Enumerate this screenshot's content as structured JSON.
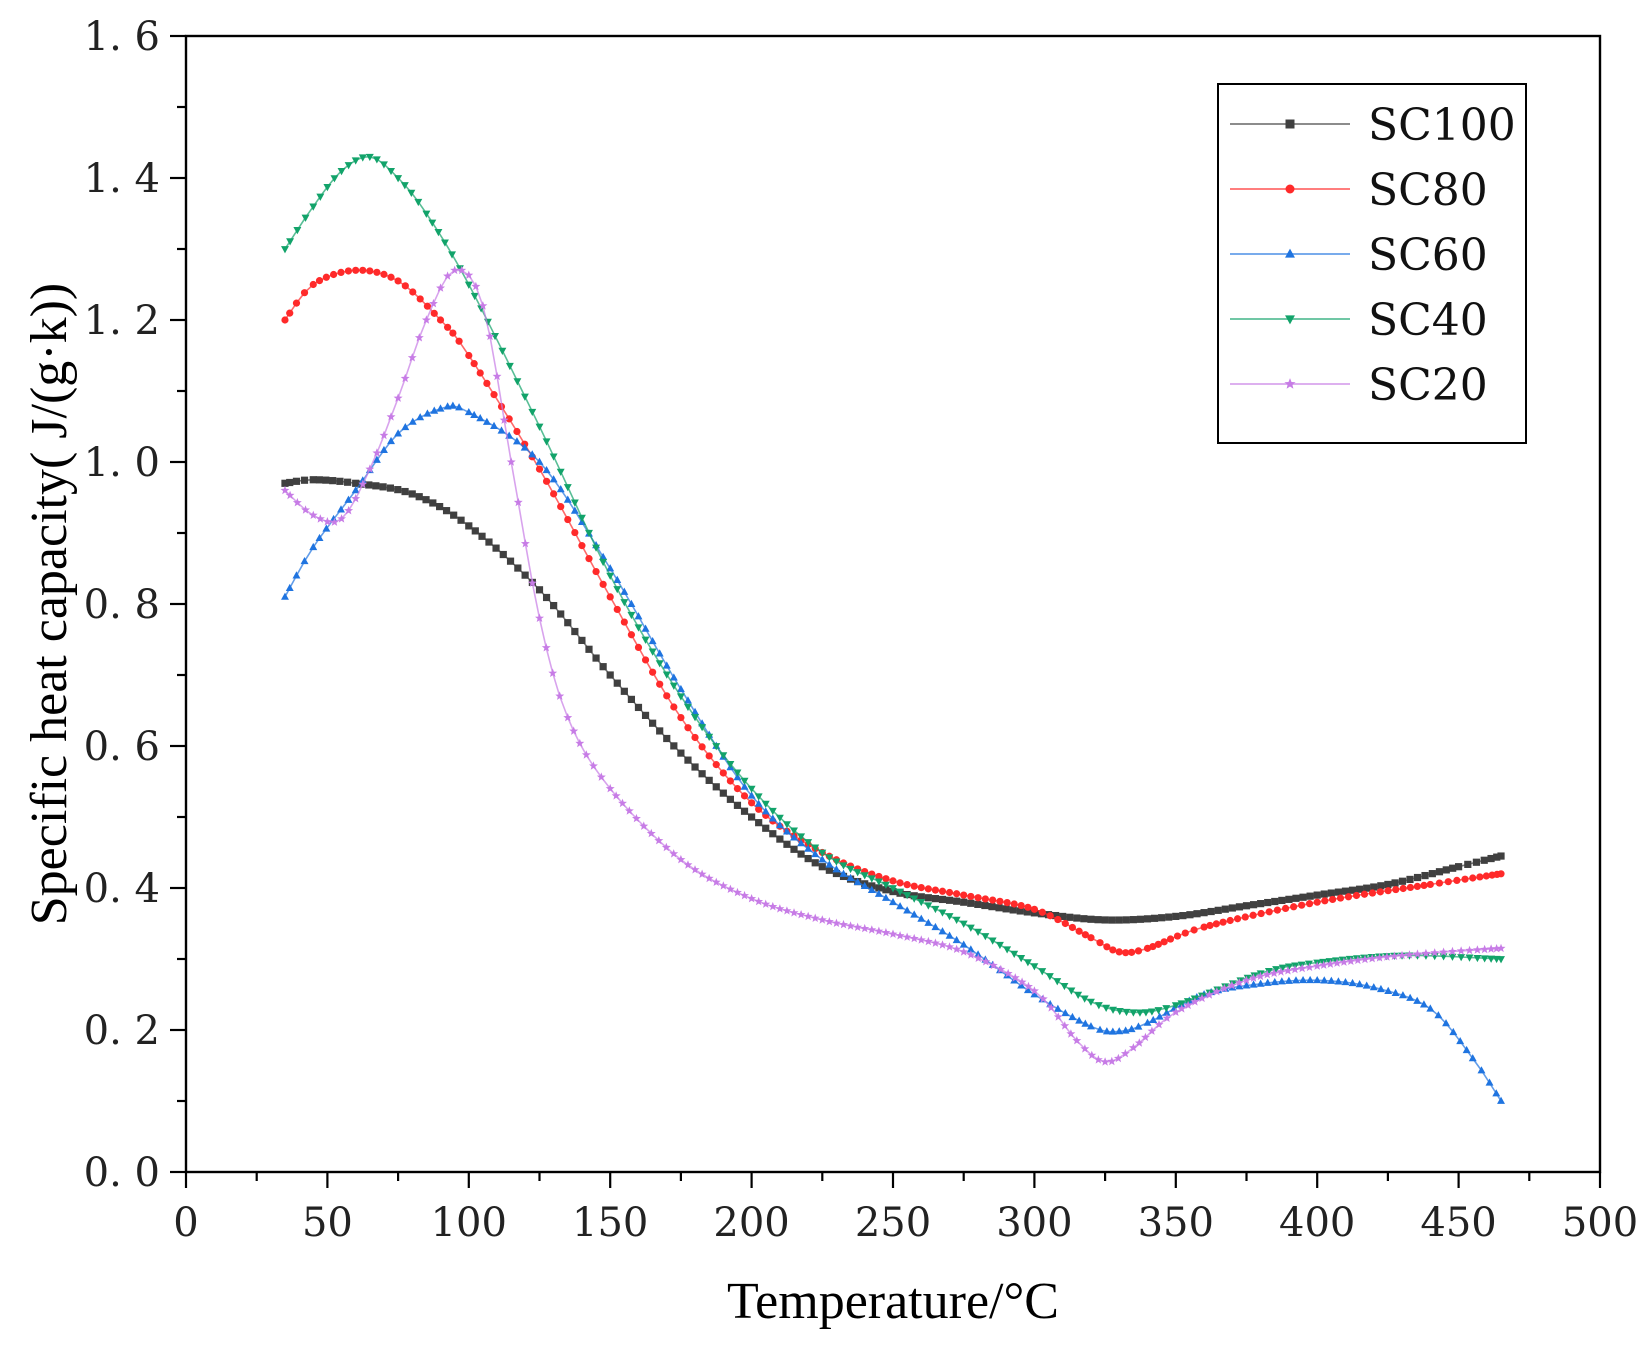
{
  "chart_data": {
    "type": "line",
    "title": "",
    "xlabel": "Temperature/°C",
    "ylabel": "Specific heat capacity( J/(g·k))",
    "xlim": [
      0,
      500
    ],
    "ylim": [
      0.0,
      1.6
    ],
    "x_ticks": [
      0,
      50,
      100,
      150,
      200,
      250,
      300,
      350,
      400,
      450,
      500
    ],
    "x_tick_labels": [
      "0",
      "50",
      "100",
      "150",
      "200",
      "250",
      "300",
      "350",
      "400",
      "450",
      "500"
    ],
    "y_ticks": [
      0.0,
      0.2,
      0.4,
      0.6,
      0.8,
      1.0,
      1.2,
      1.4,
      1.6
    ],
    "y_tick_labels": [
      "0. 0",
      "0. 2",
      "0. 4",
      "0. 6",
      "0. 8",
      "1. 0",
      "1. 2",
      "1. 4",
      "1. 6"
    ],
    "grid": false,
    "legend_position": "top-right",
    "series": [
      {
        "name": "SC100",
        "color": "#404040",
        "marker": "square",
        "x": [
          35,
          45,
          60,
          80,
          100,
          125,
          150,
          175,
          200,
          225,
          250,
          275,
          300,
          325,
          350,
          375,
          400,
          425,
          450,
          465
        ],
        "y": [
          0.97,
          0.975,
          0.97,
          0.955,
          0.91,
          0.82,
          0.7,
          0.59,
          0.5,
          0.43,
          0.395,
          0.38,
          0.365,
          0.355,
          0.36,
          0.375,
          0.39,
          0.405,
          0.43,
          0.445
        ]
      },
      {
        "name": "SC80",
        "color": "#ff2a2a",
        "marker": "circle",
        "x": [
          35,
          45,
          60,
          75,
          90,
          100,
          125,
          150,
          175,
          200,
          225,
          250,
          275,
          300,
          320,
          330,
          340,
          360,
          400,
          440,
          465
        ],
        "y": [
          1.2,
          1.25,
          1.27,
          1.255,
          1.2,
          1.15,
          0.99,
          0.81,
          0.64,
          0.52,
          0.45,
          0.41,
          0.39,
          0.37,
          0.33,
          0.31,
          0.315,
          0.345,
          0.38,
          0.405,
          0.42
        ]
      },
      {
        "name": "SC60",
        "color": "#1f74e0",
        "marker": "triangle-up",
        "x": [
          35,
          45,
          60,
          75,
          90,
          100,
          125,
          150,
          175,
          200,
          225,
          250,
          275,
          300,
          320,
          330,
          340,
          360,
          380,
          400,
          420,
          440,
          455,
          465
        ],
        "y": [
          0.81,
          0.88,
          0.96,
          1.04,
          1.075,
          1.07,
          1.0,
          0.85,
          0.68,
          0.53,
          0.44,
          0.38,
          0.32,
          0.25,
          0.205,
          0.198,
          0.21,
          0.25,
          0.265,
          0.27,
          0.26,
          0.23,
          0.16,
          0.1
        ]
      },
      {
        "name": "SC40",
        "color": "#12a36a",
        "marker": "triangle-down",
        "x": [
          35,
          45,
          55,
          65,
          75,
          85,
          100,
          125,
          150,
          175,
          200,
          225,
          250,
          275,
          300,
          320,
          335,
          350,
          380,
          400,
          430,
          465
        ],
        "y": [
          1.3,
          1.36,
          1.41,
          1.43,
          1.4,
          1.35,
          1.25,
          1.05,
          0.84,
          0.67,
          0.54,
          0.45,
          0.4,
          0.35,
          0.29,
          0.24,
          0.225,
          0.235,
          0.28,
          0.295,
          0.305,
          0.3
        ]
      },
      {
        "name": "SC20",
        "color": "#c77ce6",
        "marker": "star",
        "x": [
          35,
          45,
          55,
          65,
          75,
          85,
          95,
          105,
          115,
          125,
          135,
          150,
          175,
          200,
          225,
          250,
          275,
          300,
          315,
          325,
          335,
          350,
          375,
          400,
          430,
          465
        ],
        "y": [
          0.96,
          0.925,
          0.92,
          0.99,
          1.09,
          1.2,
          1.27,
          1.22,
          1.0,
          0.78,
          0.64,
          0.54,
          0.44,
          0.385,
          0.355,
          0.335,
          0.31,
          0.255,
          0.185,
          0.155,
          0.175,
          0.225,
          0.27,
          0.29,
          0.305,
          0.315
        ]
      }
    ]
  }
}
